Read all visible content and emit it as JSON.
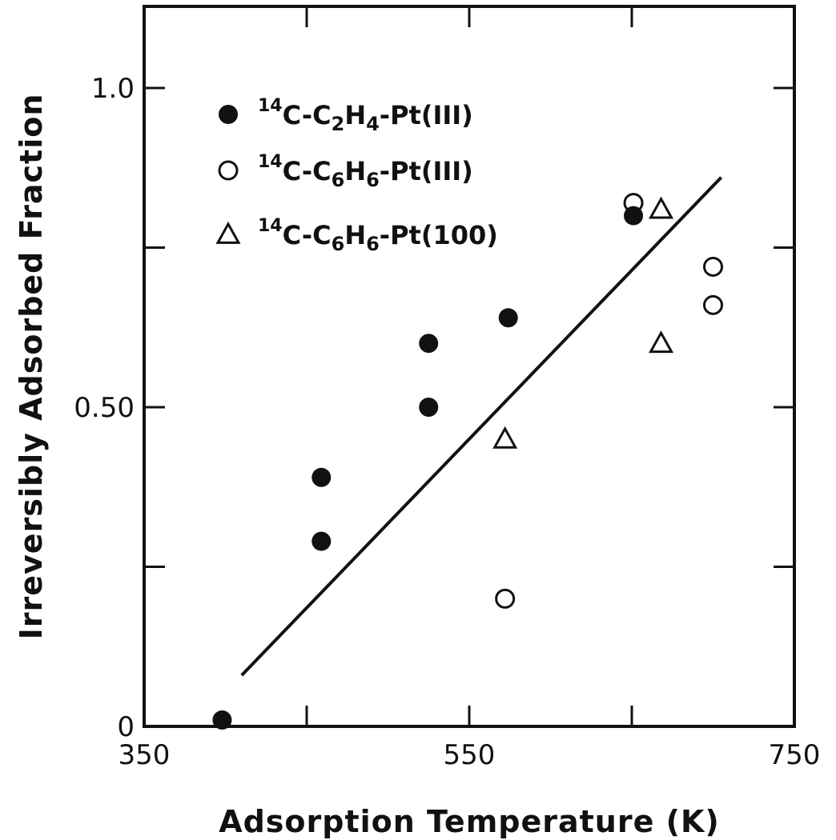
{
  "chart_data": {
    "type": "scatter",
    "title": "",
    "xlabel": "Adsorption Temperature (K)",
    "ylabel": "Irreversibly Adsorbed Fraction",
    "xlim": [
      350,
      750
    ],
    "ylim": [
      0,
      1.12
    ],
    "x_ticks": [
      350,
      550,
      750
    ],
    "x_tick_labels": [
      "350",
      "550",
      "750"
    ],
    "x_minor_ticks": [
      450,
      650
    ],
    "y_ticks": [
      0,
      0.5,
      1.0
    ],
    "y_tick_labels": [
      "0",
      "0.50",
      "1.0"
    ],
    "y_minor_ticks": [
      0.25,
      0.75
    ],
    "grid": false,
    "legend_position": "top-left",
    "series": [
      {
        "name_isotope": "14",
        "name_parts": [
          "C-C",
          "2",
          "H",
          "4",
          "-Pt(III)"
        ],
        "marker": "filled-circle",
        "color": "#111111",
        "points": [
          {
            "x": 398,
            "y": 0.01
          },
          {
            "x": 459,
            "y": 0.39
          },
          {
            "x": 459,
            "y": 0.29
          },
          {
            "x": 525,
            "y": 0.6
          },
          {
            "x": 525,
            "y": 0.5
          },
          {
            "x": 574,
            "y": 0.64
          },
          {
            "x": 651,
            "y": 0.8
          }
        ]
      },
      {
        "name_isotope": "14",
        "name_parts": [
          "C-C",
          "6",
          "H",
          "6",
          "-Pt(III)"
        ],
        "marker": "open-circle",
        "color": "#111111",
        "points": [
          {
            "x": 572,
            "y": 0.2
          },
          {
            "x": 651,
            "y": 0.82
          },
          {
            "x": 700,
            "y": 0.72
          },
          {
            "x": 700,
            "y": 0.66
          }
        ]
      },
      {
        "name_isotope": "14",
        "name_parts": [
          "C-C",
          "6",
          "H",
          "6",
          "-Pt(100)"
        ],
        "marker": "open-triangle",
        "color": "#111111",
        "points": [
          {
            "x": 572,
            "y": 0.45
          },
          {
            "x": 668,
            "y": 0.6
          },
          {
            "x": 668,
            "y": 0.81
          }
        ]
      }
    ],
    "fit_line": {
      "x": [
        410,
        705
      ],
      "y": [
        0.08,
        0.86
      ]
    }
  }
}
